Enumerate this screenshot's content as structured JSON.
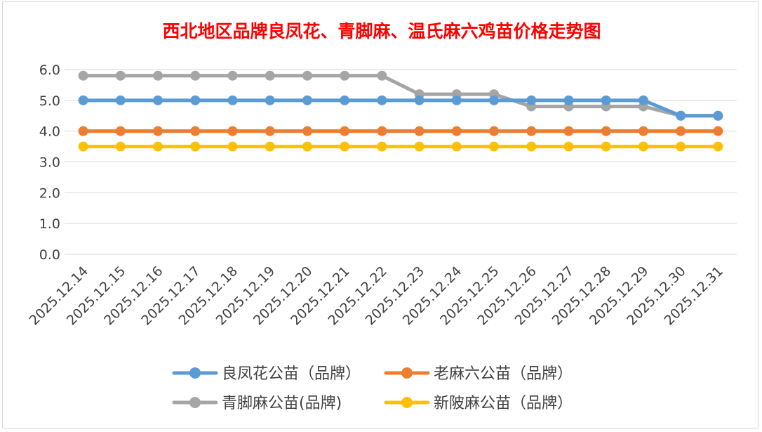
{
  "chart_data": {
    "type": "line",
    "title": "西北地区品牌良凤花、青脚麻、温氏麻六鸡苗价格走势图",
    "xlabel": "",
    "ylabel": "",
    "ylim": [
      0,
      6
    ],
    "yticks": [
      "0.0",
      "1.0",
      "2.0",
      "3.0",
      "4.0",
      "5.0",
      "6.0"
    ],
    "grid": "horizontal",
    "legend_position": "bottom",
    "categories": [
      "2025.12.14",
      "2025.12.15",
      "2025.12.16",
      "2025.12.17",
      "2025.12.18",
      "2025.12.19",
      "2025.12.20",
      "2025.12.21",
      "2025.12.22",
      "2025.12.23",
      "2025.12.24",
      "2025.12.25",
      "2025.12.26",
      "2025.12.27",
      "2025.12.28",
      "2025.12.29",
      "2025.12.30",
      "2025.12.31"
    ],
    "series": [
      {
        "name": "良凤花公苗（品牌）",
        "color": "#5b9bd5",
        "values": [
          5.0,
          5.0,
          5.0,
          5.0,
          5.0,
          5.0,
          5.0,
          5.0,
          5.0,
          5.0,
          5.0,
          5.0,
          5.0,
          5.0,
          5.0,
          5.0,
          4.5,
          4.5
        ]
      },
      {
        "name": "老麻六公苗（品牌）",
        "color": "#ed7d31",
        "values": [
          4.0,
          4.0,
          4.0,
          4.0,
          4.0,
          4.0,
          4.0,
          4.0,
          4.0,
          4.0,
          4.0,
          4.0,
          4.0,
          4.0,
          4.0,
          4.0,
          4.0,
          4.0
        ]
      },
      {
        "name": "青脚麻公苗(品牌)",
        "color": "#a5a5a5",
        "values": [
          5.8,
          5.8,
          5.8,
          5.8,
          5.8,
          5.8,
          5.8,
          5.8,
          5.8,
          5.2,
          5.2,
          5.2,
          4.8,
          4.8,
          4.8,
          4.8,
          4.5,
          4.5
        ]
      },
      {
        "name": "新陂麻公苗（品牌）",
        "color": "#ffc000",
        "values": [
          3.5,
          3.5,
          3.5,
          3.5,
          3.5,
          3.5,
          3.5,
          3.5,
          3.5,
          3.5,
          3.5,
          3.5,
          3.5,
          3.5,
          3.5,
          3.5,
          3.5,
          3.5
        ]
      }
    ],
    "draw_order": [
      2,
      0,
      1,
      3
    ]
  }
}
